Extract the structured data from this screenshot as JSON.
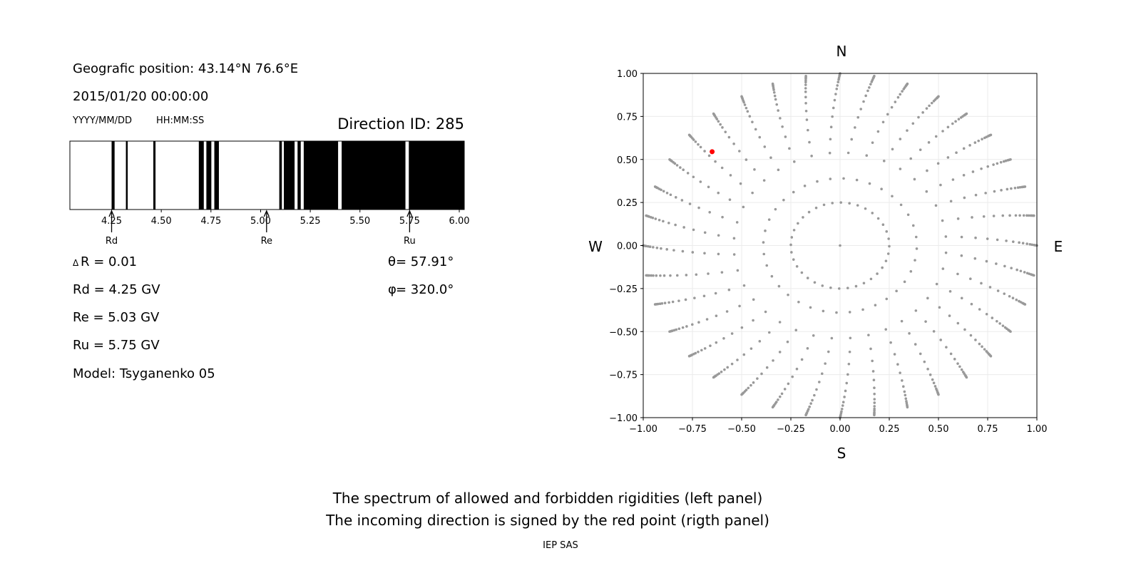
{
  "info": {
    "position": "Geografic position: 43.14°N 76.6°E",
    "datetime": "2015/01/20 00:00:00",
    "date_format": "YYYY/MM/DD",
    "time_format": "HH:MM:SS",
    "direction_id": "Direction ID: 285",
    "delta_symbol": "Δ",
    "delta_r": "R = 0.01",
    "rd": "Rd = 4.25 GV",
    "re": "Re = 5.03 GV",
    "ru": "Ru = 5.75 GV",
    "model": "Model: Tsyganenko 05",
    "theta_symbol": "θ",
    "theta": " = 57.91°",
    "phi_symbol": "φ",
    "phi": " = 320.0°"
  },
  "captions": {
    "line1": "The spectrum of allowed and forbidden rigidities (left panel)",
    "line2": "The incoming direction is signed by the red point (rigth panel)",
    "credit": "IEP SAS"
  },
  "chart_data": [
    {
      "type": "bar",
      "title": "",
      "xlim": [
        4.04,
        6.025
      ],
      "xticks": [
        "4.25",
        "4.50",
        "4.75",
        "5.00",
        "5.25",
        "5.50",
        "5.75",
        "6.00"
      ],
      "forbidden_bands": [
        [
          4.25,
          4.265
        ],
        [
          4.322,
          4.331
        ],
        [
          4.46,
          4.471
        ],
        [
          4.689,
          4.714
        ],
        [
          4.727,
          4.752
        ],
        [
          4.767,
          4.79
        ],
        [
          5.094,
          5.107
        ],
        [
          5.117,
          5.171
        ],
        [
          5.186,
          5.202
        ],
        [
          5.217,
          5.39
        ],
        [
          5.408,
          5.729
        ],
        [
          5.746,
          6.025
        ]
      ],
      "band_color": "#000000",
      "markers": [
        {
          "label": "Rd",
          "value": 4.25
        },
        {
          "label": "Re",
          "value": 5.03
        },
        {
          "label": "Ru",
          "value": 5.75
        }
      ]
    },
    {
      "type": "scatter",
      "xlim": [
        -1,
        1
      ],
      "ylim": [
        -1,
        1
      ],
      "grid": true,
      "xticks": [
        "−1.00",
        "−0.75",
        "−0.50",
        "−0.25",
        "0.00",
        "0.25",
        "0.50",
        "0.75",
        "1.00"
      ],
      "yticks": [
        "−1.00",
        "−0.75",
        "−0.50",
        "−0.25",
        "0.00",
        "0.25",
        "0.50",
        "0.75",
        "1.00"
      ],
      "compass": {
        "north": "N",
        "south": "S",
        "east": "E",
        "west": "W"
      },
      "grid_points": {
        "azimuth_step_deg": 10,
        "radii": [
          0.25,
          0.39,
          0.54,
          0.62,
          0.69,
          0.75,
          0.8,
          0.845,
          0.88,
          0.91,
          0.93,
          0.95,
          0.965,
          0.975,
          0.985,
          0.99,
          0.995,
          1.0
        ],
        "color": "#999999"
      },
      "highlight": {
        "x": -0.65,
        "y": 0.545,
        "color": "#ff0000"
      }
    }
  ]
}
